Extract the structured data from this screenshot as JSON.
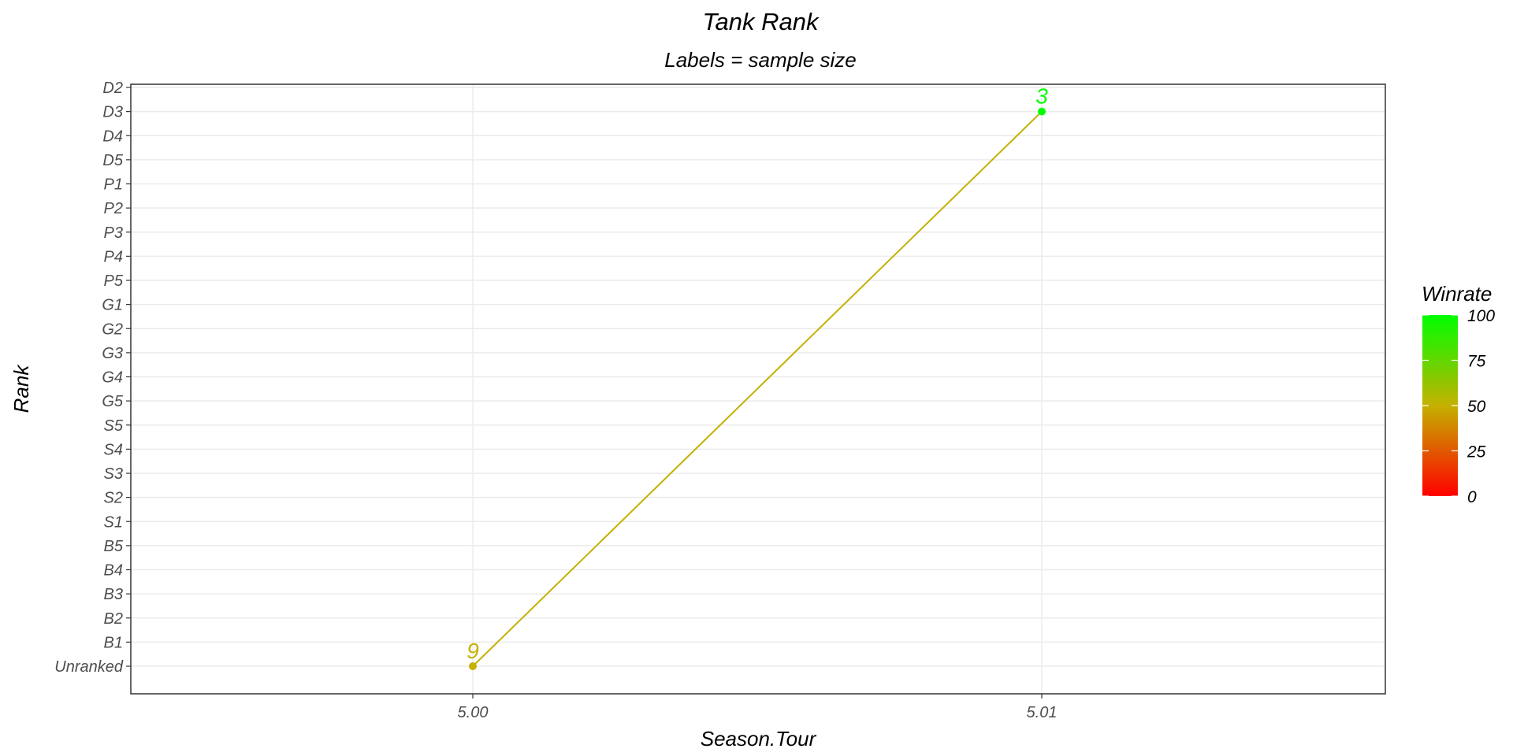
{
  "chart_data": {
    "type": "line",
    "title": "Tank Rank",
    "subtitle": "Labels = sample size",
    "xlabel": "Season.Tour",
    "ylabel": "Rank",
    "x_ticks": [
      "5.00",
      "5.01"
    ],
    "y_categories": [
      "Unranked",
      "B1",
      "B2",
      "B3",
      "B4",
      "B5",
      "S1",
      "S2",
      "S3",
      "S4",
      "S5",
      "G5",
      "G4",
      "G3",
      "G2",
      "G1",
      "P5",
      "P4",
      "P3",
      "P2",
      "P1",
      "D5",
      "D4",
      "D3",
      "D2"
    ],
    "points": [
      {
        "x": "5.00",
        "y": "Unranked",
        "label": "9",
        "winrate": 50
      },
      {
        "x": "5.01",
        "y": "D3",
        "label": "3",
        "winrate": 100
      }
    ],
    "line_color": "#C4B100",
    "legend": {
      "title": "Winrate",
      "ticks": [
        "0",
        "25",
        "50",
        "75",
        "100"
      ],
      "range": [
        0,
        100
      ],
      "colors": [
        "#FF0000",
        "#C4B100",
        "#00FF00"
      ],
      "position": "right"
    },
    "grid": true
  }
}
